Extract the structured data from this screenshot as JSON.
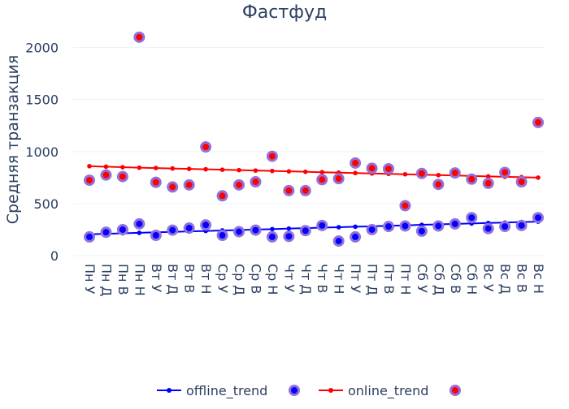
{
  "chart_data": {
    "type": "scatter",
    "title": "Фастфуд",
    "xlabel": "",
    "ylabel": "Средняя транзакция",
    "ylim": [
      0,
      2200
    ],
    "yticks": [
      0,
      500,
      1000,
      1500,
      2000
    ],
    "categories": [
      "Пн У",
      "Пн Д",
      "Пн В",
      "Пн Н",
      "Вт У",
      "Вт Д",
      "Вт В",
      "Вт Н",
      "Ср У",
      "Ср Д",
      "Ср В",
      "Ср Н",
      "Чт У",
      "Чт Д",
      "Чт В",
      "Чт Н",
      "Пт У",
      "Пт Д",
      "Пт В",
      "Пт Н",
      "Сб У",
      "Сб Д",
      "Сб В",
      "Сб Н",
      "Вс У",
      "Вс Д",
      "Вс В",
      "Вс Н"
    ],
    "series": [
      {
        "name": "offline_trend",
        "kind": "line",
        "color": "#0000ff",
        "values": [
          205,
          210,
          215,
          219,
          224,
          228,
          233,
          237,
          242,
          246,
          251,
          255,
          260,
          264,
          269,
          273,
          278,
          282,
          287,
          291,
          296,
          300,
          305,
          309,
          314,
          318,
          323,
          327
        ]
      },
      {
        "name": "",
        "kind": "markers",
        "color": "#0000ff",
        "outline": "#9370db",
        "values": [
          180,
          225,
          250,
          305,
          195,
          245,
          265,
          295,
          195,
          230,
          245,
          180,
          185,
          240,
          290,
          140,
          180,
          250,
          280,
          285,
          235,
          285,
          305,
          365,
          260,
          280,
          290,
          365
        ]
      },
      {
        "name": "online_trend",
        "kind": "line",
        "color": "#ff0000",
        "values": [
          860,
          855,
          850,
          845,
          842,
          838,
          834,
          830,
          826,
          822,
          818,
          814,
          810,
          806,
          802,
          798,
          794,
          790,
          786,
          782,
          778,
          774,
          770,
          766,
          762,
          758,
          754,
          750
        ]
      },
      {
        "name": "",
        "kind": "markers",
        "color": "#ff0000",
        "outline": "#9370db",
        "values": [
          725,
          775,
          760,
          2100,
          705,
          660,
          680,
          1045,
          575,
          680,
          710,
          955,
          625,
          625,
          730,
          740,
          890,
          840,
          835,
          480,
          790,
          685,
          795,
          735,
          695,
          800,
          710,
          1280
        ]
      }
    ],
    "legend": "bottom"
  }
}
